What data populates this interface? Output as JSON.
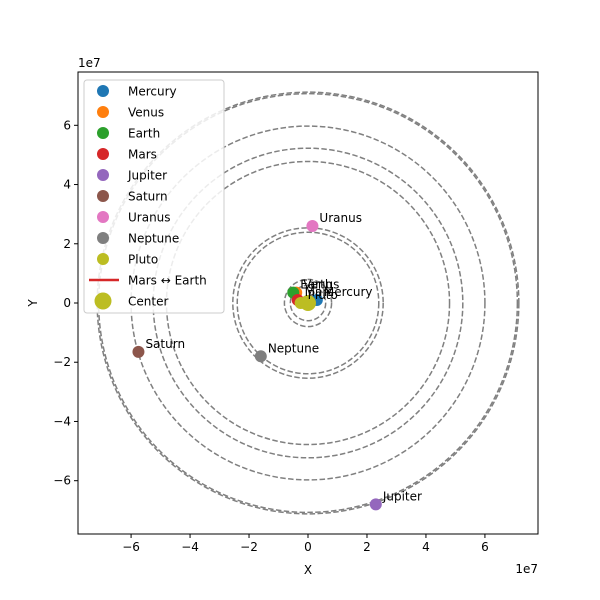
{
  "chart_data": {
    "type": "scatter",
    "title": "",
    "xlabel": "X",
    "ylabel": "Y",
    "x_scale_label": "1e7",
    "y_scale_label": "1e7",
    "xlim": [
      -7.8,
      7.8
    ],
    "ylim": [
      -7.8,
      7.8
    ],
    "xticks": [
      -6,
      -4,
      -2,
      0,
      2,
      4,
      6
    ],
    "yticks": [
      -6,
      -4,
      -2,
      0,
      2,
      4,
      6
    ],
    "grid": false,
    "legend_position": "upper-left",
    "orbits": [
      {
        "radius": 0.6
      },
      {
        "radius": 0.8
      },
      {
        "radius": 2.55
      },
      {
        "radius": 2.4
      },
      {
        "radius": 4.8
      },
      {
        "radius": 5.25
      },
      {
        "radius": 7.1
      },
      {
        "radius": 6.0
      },
      {
        "radius": 7.15
      }
    ],
    "series": [
      {
        "name": "Mercury",
        "label": "Mercury",
        "color": "#1f77b4",
        "x": 0.3,
        "y": 0.1
      },
      {
        "name": "Venus",
        "label": "Venus",
        "color": "#ff7f0e",
        "x": -0.4,
        "y": 0.35
      },
      {
        "name": "Earth",
        "label": "Earth",
        "color": "#2ca02c",
        "x": -0.5,
        "y": 0.35
      },
      {
        "name": "Mars",
        "label": "Mars",
        "color": "#d62728",
        "x": -0.35,
        "y": 0.1
      },
      {
        "name": "Jupiter",
        "label": "Jupiter",
        "color": "#9467bd",
        "x": 2.3,
        "y": -6.8
      },
      {
        "name": "Saturn",
        "label": "Saturn",
        "color": "#8c564b",
        "x": -5.75,
        "y": -1.65
      },
      {
        "name": "Uranus",
        "label": "Uranus",
        "color": "#e377c2",
        "x": 0.15,
        "y": 2.6
      },
      {
        "name": "Neptune",
        "label": "Neptune",
        "color": "#7f7f7f",
        "x": -1.6,
        "y": -1.8
      },
      {
        "name": "Pluto",
        "label": "Pluto",
        "color": "#bcbd22",
        "x": -0.25,
        "y": 0.0
      }
    ],
    "connector": {
      "name": "Mars ↔ Earth",
      "color": "#d62728",
      "from": "Mars",
      "to": "Earth"
    },
    "center": {
      "name": "Center",
      "color": "#bcbd22",
      "x": 0,
      "y": 0
    }
  }
}
